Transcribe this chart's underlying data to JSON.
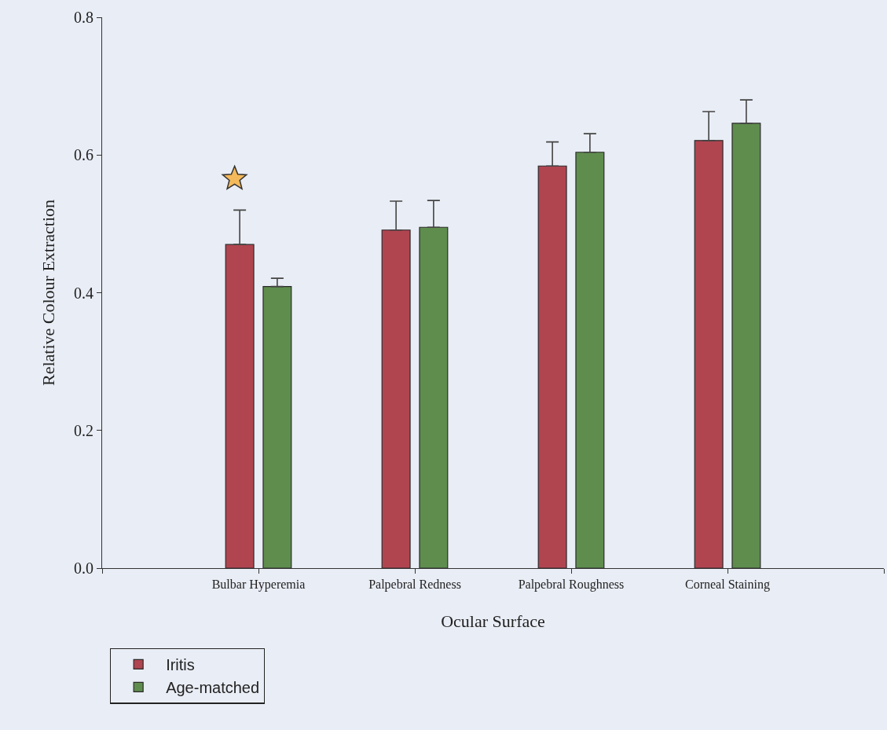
{
  "chart_data": {
    "type": "bar",
    "xlabel": "Ocular Surface",
    "ylabel": "Relative Colour Extraction",
    "categories": [
      "Bulbar Hyperemia",
      "Palpebral Redness",
      "Palpebral Roughness",
      "Corneal Staining"
    ],
    "series": [
      {
        "name": "Iritis",
        "color": "#b04550",
        "values": [
          0.47,
          0.491,
          0.584,
          0.621
        ],
        "errors": [
          [
            0.47,
            0.52
          ],
          [
            0.491,
            0.533
          ],
          [
            0.584,
            0.619
          ],
          [
            0.621,
            0.663
          ]
        ]
      },
      {
        "name": "Age-matched",
        "color": "#5f8d4e",
        "values": [
          0.409,
          0.495,
          0.604,
          0.646
        ],
        "errors": [
          [
            0.409,
            0.421
          ],
          [
            0.495,
            0.534
          ],
          [
            0.604,
            0.631
          ],
          [
            0.646,
            0.68
          ]
        ]
      }
    ],
    "ylim": [
      0,
      0.8
    ],
    "yticks": [
      {
        "value": 0,
        "label": "0.0"
      },
      0.2,
      0.4,
      0.6,
      0.8
    ],
    "grid": false,
    "legend": "bottom left"
  }
}
